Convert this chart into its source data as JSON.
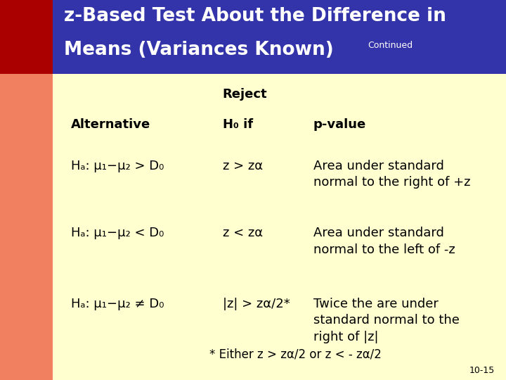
{
  "title_line1": "z-Based Test About the Difference in",
  "title_line2": "Means (Variances Known)",
  "title_continued": "Continued",
  "header_bg": "#3333AA",
  "left_bar_color": "#F08060",
  "dark_red_color": "#AA0000",
  "body_bg": "#FFFFD0",
  "title_text_color": "#FFFFFF",
  "body_text_color": "#000000",
  "slide_number": "10-15",
  "col1_header": "Alternative",
  "col2_header_line1": "Reject",
  "col2_header_line2": "H₀ if",
  "col3_header": "p-value",
  "rows": [
    {
      "col1": "Hₐ: μ₁−μ₂ > D₀",
      "col2": "z > zα",
      "col3": "Area under standard\nnormal to the right of +z"
    },
    {
      "col1": "Hₐ: μ₁−μ₂ < D₀",
      "col2": "z < zα",
      "col3": "Area under standard\nnormal to the left of -z"
    },
    {
      "col1": "Hₐ: μ₁−μ₂ ≠ D₀",
      "col2": "|z| > zα/2*",
      "col3": "Twice the are under\nstandard normal to the\nright of |z|"
    }
  ],
  "footnote": "* Either z > zα/2 or z < - zα/2"
}
